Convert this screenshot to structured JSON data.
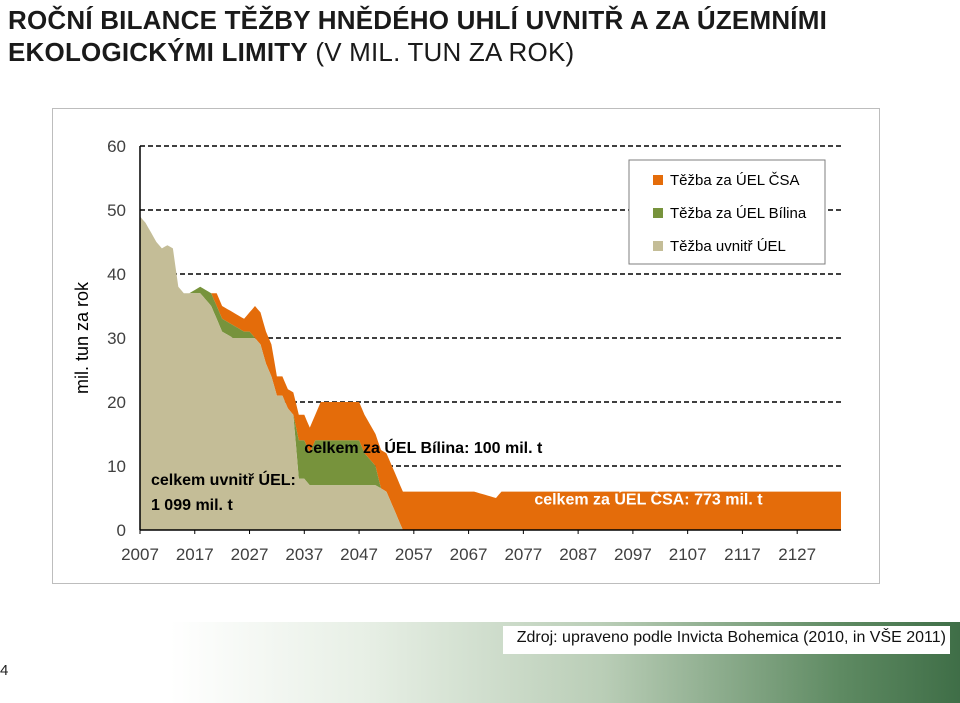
{
  "slide": {
    "title_line1": "ROČNÍ BILANCE TĚŽBY HNĚDÉHO UHLÍ UVNITŘ A ZA ÚZEMNÍMI",
    "title_line2_bold": "EKOLOGICKÝMI LIMITY",
    "title_line2_rest": " (V MIL. TUN ZA ROK)",
    "source": "Zdroj: upraveno podle Invicta Bohemica (2010, in VŠE 2011)",
    "page_number": "4"
  },
  "chart_data": {
    "type": "area",
    "stacked": true,
    "title": "",
    "xlabel": "",
    "ylabel": "mil. tun za rok",
    "xlim": [
      2007,
      2135
    ],
    "ylim": [
      0,
      60
    ],
    "yticks": [
      0,
      10,
      20,
      30,
      40,
      50,
      60
    ],
    "xticks": [
      "2007",
      "2017",
      "2027",
      "2037",
      "2047",
      "2057",
      "2067",
      "2077",
      "2087",
      "2097",
      "2107",
      "2117",
      "2127"
    ],
    "grid": "horizontal dashed",
    "legend_position": "top-right",
    "series": [
      {
        "name": "Těžba za ÚEL ČSA",
        "color": "#e46c0a",
        "points": [
          [
            2007,
            0
          ],
          [
            2018,
            0
          ],
          [
            2020,
            0
          ],
          [
            2021,
            2
          ],
          [
            2024,
            2
          ],
          [
            2026,
            2
          ],
          [
            2027,
            3
          ],
          [
            2028,
            5
          ],
          [
            2031,
            5
          ],
          [
            2032,
            3
          ],
          [
            2034,
            3
          ],
          [
            2036,
            4
          ],
          [
            2037,
            4
          ],
          [
            2039,
            4
          ],
          [
            2040,
            6
          ],
          [
            2044,
            6
          ],
          [
            2047,
            6
          ],
          [
            2048,
            6
          ],
          [
            2050,
            5
          ],
          [
            2051,
            6
          ],
          [
            2053,
            6
          ],
          [
            2055,
            6
          ],
          [
            2057,
            6
          ],
          [
            2068,
            6
          ],
          [
            2072,
            5
          ],
          [
            2073,
            6
          ],
          [
            2076,
            6
          ],
          [
            2090,
            6
          ],
          [
            2110,
            6
          ],
          [
            2135,
            6
          ]
        ]
      },
      {
        "name": "Těžba za ÚEL Bílina",
        "color": "#77933c",
        "points": [
          [
            2007,
            0
          ],
          [
            2016,
            0
          ],
          [
            2018,
            1
          ],
          [
            2020,
            2
          ],
          [
            2021,
            2
          ],
          [
            2024,
            2
          ],
          [
            2026,
            1
          ],
          [
            2027,
            1
          ],
          [
            2028,
            0
          ],
          [
            2035,
            0
          ],
          [
            2036,
            6
          ],
          [
            2037,
            6
          ],
          [
            2038,
            5
          ],
          [
            2039,
            7
          ],
          [
            2042,
            7
          ],
          [
            2046,
            7
          ],
          [
            2047,
            7
          ],
          [
            2048,
            5
          ],
          [
            2050,
            3
          ],
          [
            2051,
            0
          ],
          [
            2135,
            0
          ]
        ]
      },
      {
        "name": "Těžba uvnitř ÚEL",
        "color": "#c4bd97",
        "points": [
          [
            2007,
            49
          ],
          [
            2008,
            48
          ],
          [
            2010,
            45
          ],
          [
            2011,
            44
          ],
          [
            2012,
            44.5
          ],
          [
            2013,
            44
          ],
          [
            2014,
            38
          ],
          [
            2015,
            37
          ],
          [
            2018,
            37
          ],
          [
            2019,
            36
          ],
          [
            2020,
            35
          ],
          [
            2021,
            33
          ],
          [
            2022,
            31
          ],
          [
            2024,
            30
          ],
          [
            2026,
            30
          ],
          [
            2027,
            30
          ],
          [
            2028,
            30
          ],
          [
            2029,
            29
          ],
          [
            2030,
            26
          ],
          [
            2031,
            24
          ],
          [
            2032,
            21
          ],
          [
            2033,
            21
          ],
          [
            2034,
            19
          ],
          [
            2035,
            18
          ],
          [
            2036,
            8
          ],
          [
            2037,
            8
          ],
          [
            2038,
            7
          ],
          [
            2039,
            7
          ],
          [
            2042,
            7
          ],
          [
            2047,
            7
          ],
          [
            2050,
            7
          ],
          [
            2052,
            6
          ],
          [
            2053,
            4
          ],
          [
            2054,
            2
          ],
          [
            2055,
            0
          ],
          [
            2135,
            0
          ]
        ]
      }
    ],
    "annotations": [
      {
        "text_line1": "celkem uvnitř ÚEL:",
        "text_line2": "1 099 mil. t",
        "at_x": 2009,
        "at_y": 7
      },
      {
        "text_line1": "celkem za  ÚEL Bílina: 100 mil. t",
        "at_x": 2037,
        "at_y": 12
      },
      {
        "text_line1": "celkem za  ÚEL ČSA: 773 mil. t",
        "at_x": 2079,
        "at_y": 4
      }
    ]
  }
}
